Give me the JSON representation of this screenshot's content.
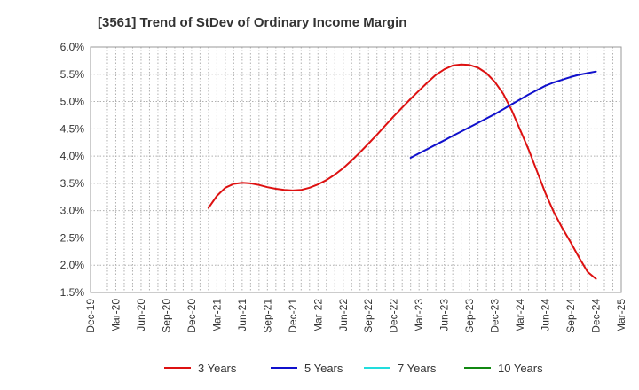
{
  "chart_data": {
    "type": "line",
    "title": "[3561]  Trend of StDev of Ordinary Income Margin",
    "xlabel": "",
    "ylabel": "",
    "x_ticks": [
      "Dec-19",
      "Mar-20",
      "Jun-20",
      "Sep-20",
      "Dec-20",
      "Mar-21",
      "Jun-21",
      "Sep-21",
      "Dec-21",
      "Mar-22",
      "Jun-22",
      "Sep-22",
      "Dec-22",
      "Mar-23",
      "Jun-23",
      "Sep-23",
      "Dec-23",
      "Mar-24",
      "Jun-24",
      "Sep-24",
      "Dec-24",
      "Mar-25"
    ],
    "y_ticks": [
      "1.5%",
      "2.0%",
      "2.5%",
      "3.0%",
      "3.5%",
      "4.0%",
      "4.5%",
      "5.0%",
      "5.5%",
      "6.0%"
    ],
    "ylim": [
      1.5,
      6.0
    ],
    "grid": true,
    "legend_position": "bottom",
    "series": [
      {
        "name": "3 Years",
        "color": "#dd1111",
        "x": [
          "Feb-21",
          "Mar-21",
          "Apr-21",
          "May-21",
          "Jun-21",
          "Jul-21",
          "Aug-21",
          "Sep-21",
          "Oct-21",
          "Nov-21",
          "Dec-21",
          "Jan-22",
          "Feb-22",
          "Mar-22",
          "Apr-22",
          "May-22",
          "Jun-22",
          "Jul-22",
          "Aug-22",
          "Sep-22",
          "Oct-22",
          "Nov-22",
          "Dec-22",
          "Jan-23",
          "Feb-23",
          "Mar-23",
          "Apr-23",
          "May-23",
          "Jun-23",
          "Jul-23",
          "Aug-23",
          "Sep-23",
          "Oct-23",
          "Nov-23",
          "Dec-23",
          "Jan-24",
          "Feb-24",
          "Mar-24",
          "Apr-24",
          "May-24",
          "Jun-24",
          "Jul-24",
          "Aug-24",
          "Sep-24",
          "Oct-24",
          "Nov-24",
          "Dec-24"
        ],
        "values": [
          3.05,
          3.27,
          3.42,
          3.49,
          3.51,
          3.5,
          3.47,
          3.43,
          3.4,
          3.38,
          3.37,
          3.38,
          3.42,
          3.48,
          3.56,
          3.66,
          3.78,
          3.92,
          4.07,
          4.23,
          4.39,
          4.56,
          4.73,
          4.89,
          5.05,
          5.2,
          5.35,
          5.49,
          5.59,
          5.66,
          5.68,
          5.67,
          5.62,
          5.52,
          5.36,
          5.14,
          4.84,
          4.48,
          4.12,
          3.72,
          3.32,
          2.97,
          2.68,
          2.42,
          2.14,
          1.88,
          1.75
        ]
      },
      {
        "name": "5 Years",
        "color": "#1010cc",
        "x": [
          "Feb-23",
          "Mar-23",
          "Apr-23",
          "May-23",
          "Jun-23",
          "Jul-23",
          "Aug-23",
          "Sep-23",
          "Oct-23",
          "Nov-23",
          "Dec-23",
          "Jan-24",
          "Feb-24",
          "Mar-24",
          "Apr-24",
          "May-24",
          "Jun-24",
          "Jul-24",
          "Aug-24",
          "Sep-24",
          "Oct-24",
          "Nov-24",
          "Dec-24"
        ],
        "values": [
          3.97,
          4.05,
          4.13,
          4.21,
          4.29,
          4.37,
          4.45,
          4.53,
          4.61,
          4.69,
          4.77,
          4.86,
          4.95,
          5.04,
          5.13,
          5.21,
          5.29,
          5.35,
          5.4,
          5.45,
          5.49,
          5.52,
          5.55
        ]
      },
      {
        "name": "7 Years",
        "color": "#22dddd",
        "x": [],
        "values": []
      },
      {
        "name": "10 Years",
        "color": "#118811",
        "x": [],
        "values": []
      }
    ]
  }
}
